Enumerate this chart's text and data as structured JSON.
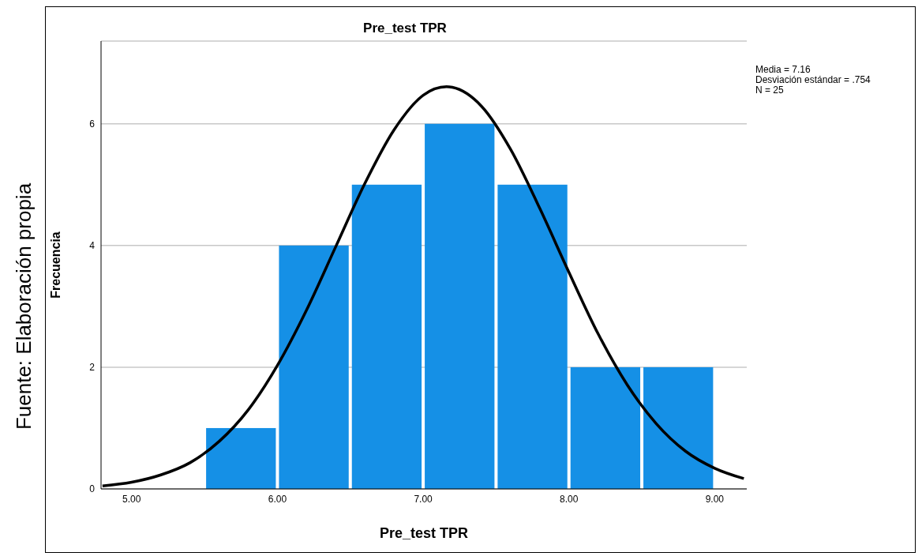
{
  "chart_data": {
    "type": "histogram",
    "title": "Pre_test TPR",
    "xlabel": "Pre_test TPR",
    "ylabel": "Frecuencia",
    "bins": [
      5.5,
      6.0,
      6.5,
      7.0,
      7.5,
      8.0,
      8.5,
      9.0
    ],
    "values": [
      1,
      4,
      5,
      6,
      5,
      2,
      2
    ],
    "color": "#1590e6",
    "series": [
      {
        "type": "line",
        "color": "#000000",
        "x": [
          4.8,
          5.0,
          5.2,
          5.4,
          5.6,
          5.8,
          6.0,
          6.2,
          6.4,
          6.6,
          6.8,
          7.0,
          7.16,
          7.2,
          7.4,
          7.6,
          7.8,
          8.0,
          8.2,
          8.4,
          8.6,
          8.8,
          9.0,
          9.2
        ],
        "values": [
          0.05,
          0.11,
          0.23,
          0.43,
          0.78,
          1.3,
          2.03,
          2.94,
          3.98,
          5.02,
          5.9,
          6.47,
          6.61,
          6.6,
          6.29,
          5.58,
          4.61,
          3.56,
          2.55,
          1.71,
          1.07,
          0.62,
          0.34,
          0.17
        ]
      }
    ],
    "xlim": [
      4.79,
      9.22
    ],
    "xticks": [
      {
        "value": 5,
        "label": "5.00"
      },
      {
        "value": 6,
        "label": "6.00"
      },
      {
        "value": 7,
        "label": "7.00"
      },
      {
        "value": 8,
        "label": "8.00"
      },
      {
        "value": 9,
        "label": "9.00"
      }
    ],
    "ylim": [
      0,
      7.36
    ],
    "yticks": [
      0,
      2,
      4,
      6
    ],
    "grid": "y",
    "marker": "none",
    "line_style": "solid",
    "annotations": [
      "Media = 7.16",
      "Desviación estándar = .754",
      "N = 25",
      "Fuente: Elaboración propia"
    ]
  }
}
